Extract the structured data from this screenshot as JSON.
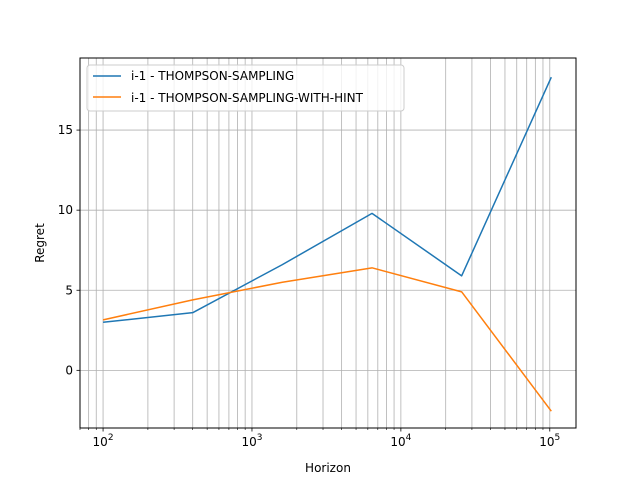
{
  "chart_data": {
    "type": "line",
    "xlabel": "Horizon",
    "ylabel": "Regret",
    "xscale": "log",
    "xlim": [
      70,
      150000
    ],
    "ylim": [
      -3.6,
      19.5
    ],
    "grid": "on (major and minor)",
    "legend_position": "upper-left",
    "xticks": [
      {
        "value": 100,
        "base": "10",
        "exp": "2"
      },
      {
        "value": 1000,
        "base": "10",
        "exp": "3"
      },
      {
        "value": 10000,
        "base": "10",
        "exp": "4"
      },
      {
        "value": 100000,
        "base": "10",
        "exp": "5"
      }
    ],
    "yticks": [
      {
        "value": 0,
        "label": "0"
      },
      {
        "value": 5,
        "label": "5"
      },
      {
        "value": 10,
        "label": "10"
      },
      {
        "value": 15,
        "label": "15"
      }
    ],
    "series": [
      {
        "name": "i-1 - THOMPSON-SAMPLING",
        "color": "#1f77b4",
        "x": [
          100,
          400,
          1600,
          6400,
          25600,
          102400
        ],
        "y": [
          3.0,
          3.6,
          6.6,
          9.8,
          5.9,
          18.3
        ]
      },
      {
        "name": "i-1 - THOMPSON-SAMPLING-WITH-HINT",
        "color": "#ff7f0e",
        "x": [
          100,
          400,
          1600,
          6400,
          25600,
          102400
        ],
        "y": [
          3.15,
          4.4,
          5.5,
          6.4,
          4.9,
          -2.55
        ]
      }
    ]
  }
}
